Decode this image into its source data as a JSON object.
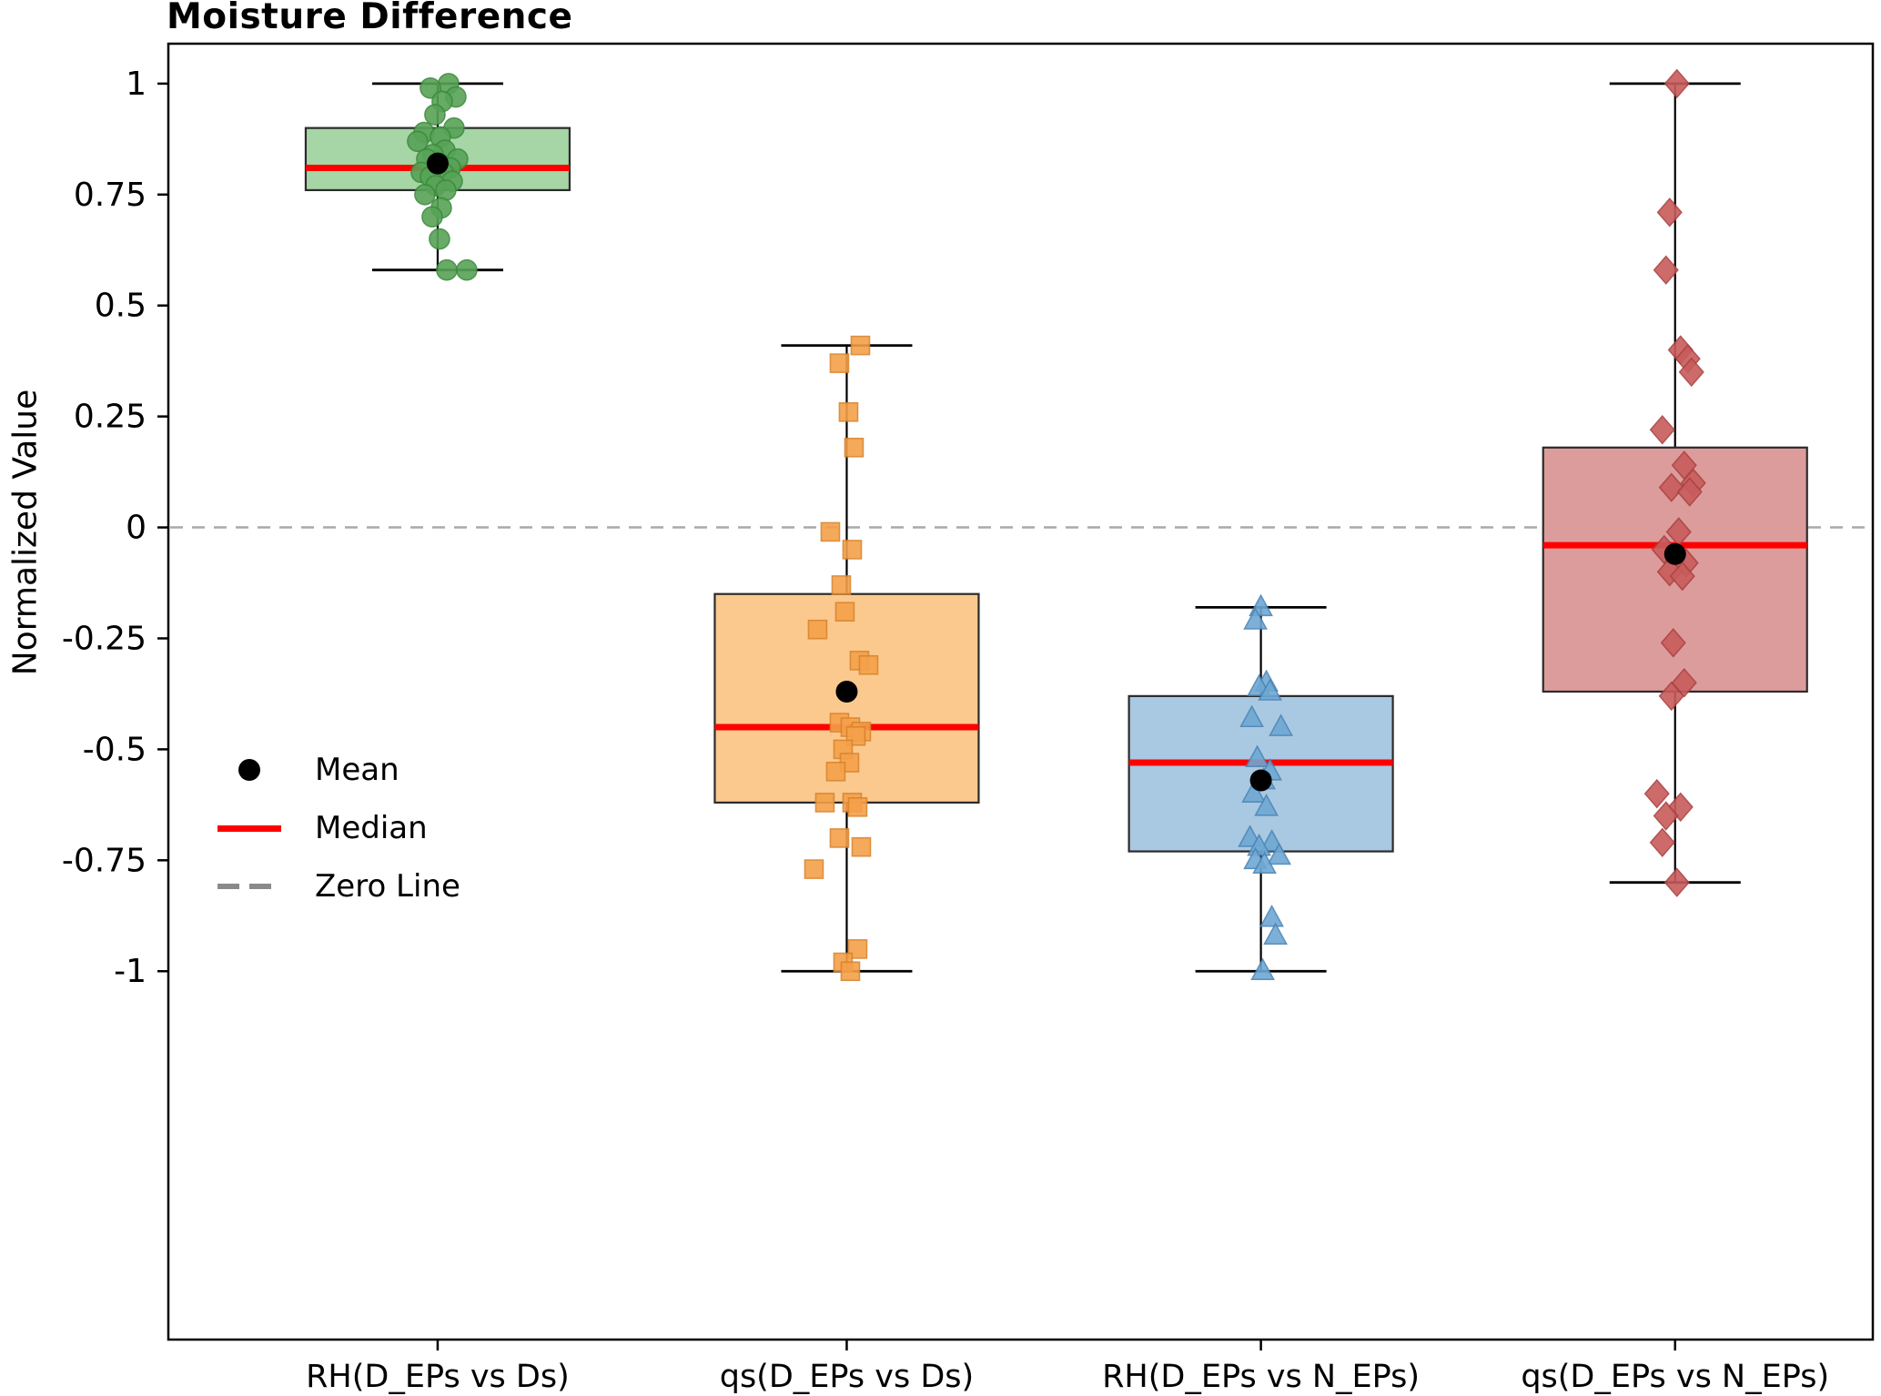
{
  "title": "Moisture Difference",
  "ylabel": "Normalized Value",
  "legend": {
    "items": [
      {
        "label": "Mean",
        "marker": "black-dot",
        "color": "#000000"
      },
      {
        "label": "Median",
        "marker": "red-line",
        "color": "#ff0000"
      },
      {
        "label": "Zero Line",
        "marker": "gray-dashed-line",
        "color": "#8a8a8a"
      }
    ]
  },
  "chart_data": {
    "type": "boxplot",
    "title": "Moisture Difference",
    "ylabel": "Normalized Value",
    "ylim": [
      -1.83,
      1.09
    ],
    "yticks": [
      1,
      0.75,
      0.5,
      0.25,
      0,
      -0.25,
      -0.5,
      -0.75,
      -1
    ],
    "ytick_labels": [
      "1",
      "0.75",
      "0.5",
      "0.25",
      "0",
      "-0.25",
      "-0.5",
      "-0.75",
      "-1"
    ],
    "zero_line_y": 0,
    "grid": false,
    "legend_position": "inside-lower-left",
    "colors": {
      "median_line": "#ff0000",
      "mean_dot": "#000000",
      "zero_line": "#a9a9a9",
      "axis": "#000000"
    },
    "categories": [
      "RH(D_EPs vs Ds)",
      "qs(D_EPs vs Ds)",
      "RH(D_EPs vs N_EPs)",
      "qs(D_EPs vs N_EPs)"
    ],
    "groups": [
      {
        "label": "RH(D_EPs vs Ds)",
        "marker": "circle",
        "box_fill": "#a6d5a6",
        "box_edge": "#2b2b2b",
        "point_fill": "#57a357",
        "point_edge": "#3c8a3c",
        "stats": {
          "whisker_low": 0.58,
          "q1": 0.76,
          "median": 0.81,
          "mean": 0.82,
          "q3": 0.9,
          "whisker_high": 1.0
        },
        "points": [
          [
            1.0,
            12
          ],
          [
            0.99,
            -8
          ],
          [
            0.97,
            20
          ],
          [
            0.96,
            5
          ],
          [
            0.93,
            -3
          ],
          [
            0.9,
            18
          ],
          [
            0.89,
            -15
          ],
          [
            0.88,
            3
          ],
          [
            0.87,
            -22
          ],
          [
            0.85,
            8
          ],
          [
            0.84,
            -5
          ],
          [
            0.83,
            22
          ],
          [
            0.83,
            -12
          ],
          [
            0.82,
            2
          ],
          [
            0.81,
            14
          ],
          [
            0.8,
            -18
          ],
          [
            0.8,
            6
          ],
          [
            0.79,
            -8
          ],
          [
            0.78,
            16
          ],
          [
            0.77,
            -2
          ],
          [
            0.76,
            9
          ],
          [
            0.75,
            -14
          ],
          [
            0.72,
            4
          ],
          [
            0.7,
            -6
          ],
          [
            0.65,
            2
          ],
          [
            0.58,
            10
          ],
          [
            0.58,
            32
          ]
        ]
      },
      {
        "label": "qs(D_EPs vs Ds)",
        "marker": "square",
        "box_fill": "#fbc98e",
        "box_edge": "#2b2b2b",
        "point_fill": "#f5a04a",
        "point_edge": "#d9842c",
        "stats": {
          "whisker_low": -1.0,
          "q1": -0.62,
          "median": -0.45,
          "mean": -0.37,
          "q3": -0.15,
          "whisker_high": 0.41
        },
        "points": [
          [
            0.41,
            15
          ],
          [
            0.37,
            -8
          ],
          [
            0.26,
            2
          ],
          [
            0.18,
            8
          ],
          [
            -0.01,
            -18
          ],
          [
            -0.05,
            6
          ],
          [
            -0.13,
            -6
          ],
          [
            -0.19,
            -2
          ],
          [
            -0.23,
            -32
          ],
          [
            -0.3,
            14
          ],
          [
            -0.31,
            24
          ],
          [
            -0.44,
            -8
          ],
          [
            -0.45,
            4
          ],
          [
            -0.46,
            16
          ],
          [
            -0.47,
            10
          ],
          [
            -0.5,
            -4
          ],
          [
            -0.53,
            3
          ],
          [
            -0.55,
            -12
          ],
          [
            -0.62,
            -24
          ],
          [
            -0.62,
            6
          ],
          [
            -0.63,
            12
          ],
          [
            -0.7,
            -8
          ],
          [
            -0.72,
            16
          ],
          [
            -0.77,
            -36
          ],
          [
            -0.95,
            12
          ],
          [
            -0.98,
            -4
          ],
          [
            -1.0,
            4
          ]
        ]
      },
      {
        "label": "RH(D_EPs vs N_EPs)",
        "marker": "triangle",
        "box_fill": "#a9c8e2",
        "box_edge": "#2b2b2b",
        "point_fill": "#6fa8d4",
        "point_edge": "#4d86b5",
        "stats": {
          "whisker_low": -1.0,
          "q1": -0.73,
          "median": -0.53,
          "mean": -0.57,
          "q3": -0.38,
          "whisker_high": -0.18
        },
        "points": [
          [
            -0.18,
            0
          ],
          [
            -0.21,
            -6
          ],
          [
            -0.35,
            6
          ],
          [
            -0.36,
            -2
          ],
          [
            -0.37,
            10
          ],
          [
            -0.43,
            -10
          ],
          [
            -0.45,
            22
          ],
          [
            -0.52,
            -4
          ],
          [
            -0.55,
            10
          ],
          [
            -0.57,
            3
          ],
          [
            -0.6,
            -8
          ],
          [
            -0.63,
            6
          ],
          [
            -0.7,
            -12
          ],
          [
            -0.71,
            12
          ],
          [
            -0.72,
            -2
          ],
          [
            -0.74,
            20
          ],
          [
            -0.75,
            -6
          ],
          [
            -0.76,
            4
          ],
          [
            -0.88,
            12
          ],
          [
            -0.92,
            16
          ],
          [
            -1.0,
            2
          ]
        ]
      },
      {
        "label": "qs(D_EPs vs N_EPs)",
        "marker": "diamond",
        "box_fill": "#dd9c9c",
        "box_edge": "#2b2b2b",
        "point_fill": "#c85c5c",
        "point_edge": "#ab4242",
        "stats": {
          "whisker_low": -0.8,
          "q1": -0.37,
          "median": -0.04,
          "mean": -0.06,
          "q3": 0.18,
          "whisker_high": 1.0
        },
        "points": [
          [
            1.0,
            2
          ],
          [
            0.71,
            -6
          ],
          [
            0.58,
            -10
          ],
          [
            0.4,
            6
          ],
          [
            0.38,
            14
          ],
          [
            0.35,
            18
          ],
          [
            0.22,
            -14
          ],
          [
            0.14,
            10
          ],
          [
            0.1,
            20
          ],
          [
            0.09,
            -4
          ],
          [
            0.08,
            16
          ],
          [
            -0.01,
            4
          ],
          [
            -0.05,
            -12
          ],
          [
            -0.08,
            12
          ],
          [
            -0.1,
            -6
          ],
          [
            -0.11,
            8
          ],
          [
            -0.26,
            -2
          ],
          [
            -0.35,
            10
          ],
          [
            -0.38,
            -4
          ],
          [
            -0.6,
            -20
          ],
          [
            -0.63,
            6
          ],
          [
            -0.65,
            -10
          ],
          [
            -0.71,
            -14
          ],
          [
            -0.8,
            2
          ]
        ]
      }
    ]
  }
}
